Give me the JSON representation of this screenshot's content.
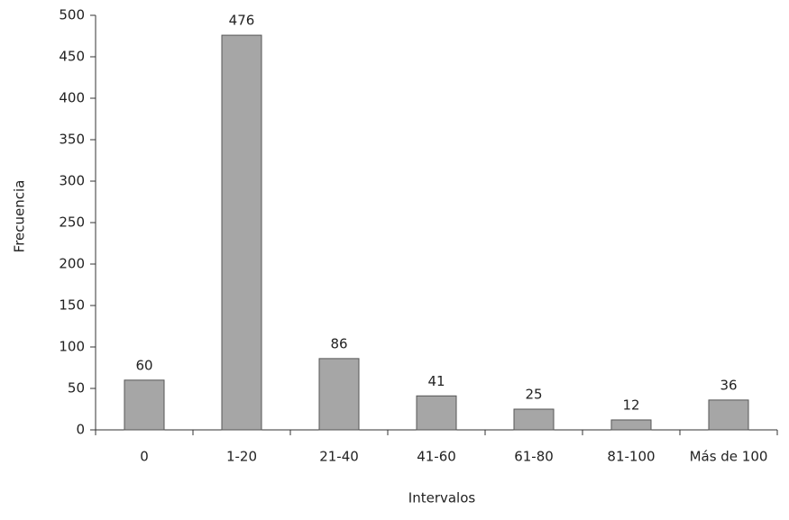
{
  "chart_data": {
    "type": "bar",
    "x_label": "Intervalos",
    "y_label": "Frecuencia",
    "categories": [
      "0",
      "1-20",
      "21-40",
      "41-60",
      "61-80",
      "81-100",
      "Más de 100"
    ],
    "values": [
      60,
      476,
      86,
      41,
      25,
      12,
      36
    ],
    "color": "#a6a6a6",
    "ylim": [
      0,
      500
    ],
    "yticks": [
      0,
      50,
      100,
      150,
      200,
      250,
      300,
      350,
      400,
      450,
      500
    ],
    "grid": false
  }
}
